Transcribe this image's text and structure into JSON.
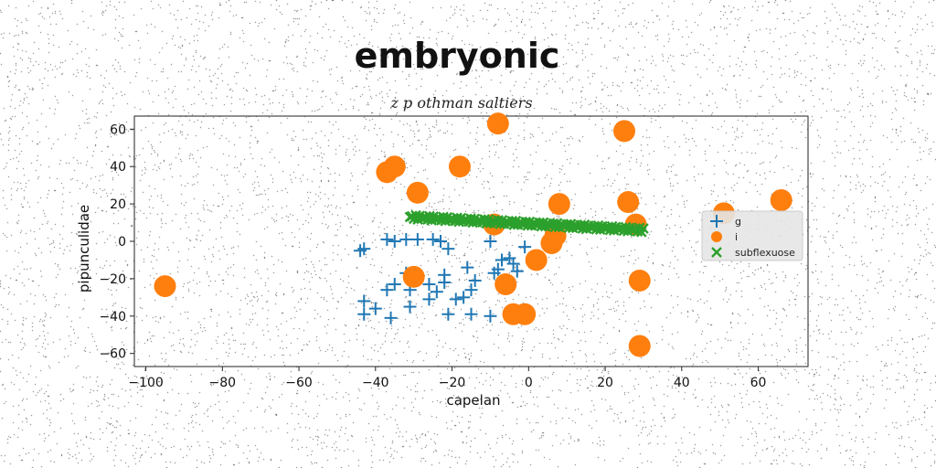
{
  "chart_data": {
    "type": "scatter",
    "title": "embryonic",
    "subtitle": "z p othman saltiers",
    "xlabel": "capelan",
    "ylabel": "pipunculidae",
    "xlim": [
      -103,
      73
    ],
    "ylim": [
      -67,
      67
    ],
    "xticks": [
      -100,
      -80,
      -60,
      -40,
      -20,
      0,
      20,
      40,
      60
    ],
    "yticks": [
      -60,
      -40,
      -20,
      0,
      20,
      40,
      60
    ],
    "xtick_labels": [
      "−100",
      "−80",
      "−60",
      "−40",
      "−20",
      "0",
      "20",
      "40",
      "60"
    ],
    "ytick_labels": [
      "−60",
      "−40",
      "−20",
      "0",
      "20",
      "40",
      "60"
    ],
    "grid": false,
    "legend_position": "center-right",
    "colors": {
      "g": "#1f77b4",
      "i": "#ff7f0e",
      "subflexuose": "#2ca02c"
    },
    "series": [
      {
        "name": "g",
        "marker": "plus",
        "points": [
          [
            -44,
            -5
          ],
          [
            -43,
            -4
          ],
          [
            -37,
            1
          ],
          [
            -35,
            0
          ],
          [
            -32,
            1
          ],
          [
            -29,
            1
          ],
          [
            -25,
            1
          ],
          [
            -23,
            0
          ],
          [
            -21,
            -4
          ],
          [
            -10,
            0
          ],
          [
            -7,
            -10
          ],
          [
            -5,
            -9
          ],
          [
            -1,
            -3
          ],
          [
            -4,
            -12
          ],
          [
            -3,
            -16
          ],
          [
            -32,
            -17
          ],
          [
            -35,
            -23
          ],
          [
            -37,
            -26
          ],
          [
            -31,
            -26
          ],
          [
            -26,
            -23
          ],
          [
            -22,
            -18
          ],
          [
            -22,
            -22
          ],
          [
            -24,
            -27
          ],
          [
            -16,
            -14
          ],
          [
            -14,
            -21
          ],
          [
            -15,
            -26
          ],
          [
            -17,
            -30
          ],
          [
            -9,
            -17
          ],
          [
            -8,
            -15
          ],
          [
            -43,
            -32
          ],
          [
            -43,
            -39
          ],
          [
            -40,
            -36
          ],
          [
            -36,
            -41
          ],
          [
            -31,
            -35
          ],
          [
            -26,
            -31
          ],
          [
            -21,
            -39
          ],
          [
            -19,
            -31
          ],
          [
            -15,
            -39
          ],
          [
            -10,
            -40
          ]
        ]
      },
      {
        "name": "i",
        "marker": "circle",
        "points": [
          [
            -95,
            -24
          ],
          [
            -37,
            37
          ],
          [
            -35,
            40
          ],
          [
            -29,
            26
          ],
          [
            -18,
            40
          ],
          [
            -30,
            -19
          ],
          [
            -8,
            63
          ],
          [
            -9,
            9
          ],
          [
            -6,
            -23
          ],
          [
            -4,
            -39
          ],
          [
            -1,
            -39
          ],
          [
            2,
            -10
          ],
          [
            6,
            -1
          ],
          [
            7,
            3
          ],
          [
            8,
            20
          ],
          [
            25,
            59
          ],
          [
            26,
            21
          ],
          [
            28,
            9
          ],
          [
            29,
            -21
          ],
          [
            29,
            -56
          ],
          [
            51,
            15
          ],
          [
            66,
            22
          ]
        ]
      },
      {
        "name": "subflexuose",
        "marker": "x",
        "line": {
          "x_from": -31,
          "x_to": 30,
          "y_from": 13,
          "y_to": 6,
          "count": 120
        }
      }
    ]
  }
}
